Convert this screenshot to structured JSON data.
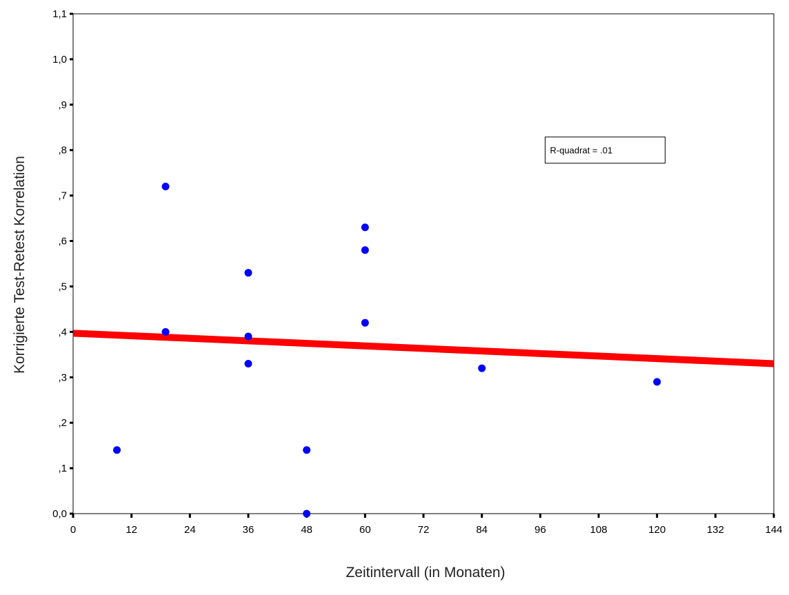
{
  "chart_data": {
    "type": "scatter",
    "title": "",
    "xlabel": "Zeitintervall (in Monaten)",
    "ylabel": "Korrigierte Test-Retest Korrelation",
    "xlim": [
      0,
      144
    ],
    "ylim": [
      0.0,
      1.1
    ],
    "x_ticks": [
      0,
      12,
      24,
      36,
      48,
      60,
      72,
      84,
      96,
      108,
      120,
      132,
      144
    ],
    "x_tick_labels": [
      "0",
      "12",
      "24",
      "36",
      "48",
      "60",
      "72",
      "84",
      "96",
      "108",
      "120",
      "132",
      "144"
    ],
    "y_ticks": [
      0.0,
      0.1,
      0.2,
      0.3,
      0.4,
      0.5,
      0.6,
      0.7,
      0.8,
      0.9,
      1.0,
      1.1
    ],
    "y_tick_labels": [
      "0,0",
      ",1",
      ",2",
      ",3",
      ",4",
      ",5",
      ",6",
      ",7",
      ",8",
      ",9",
      "1,0",
      "1,1"
    ],
    "grid": false,
    "series": [
      {
        "values": [
          [
            9,
            0.14
          ],
          [
            19,
            0.72
          ],
          [
            19,
            0.4
          ],
          [
            36,
            0.53
          ],
          [
            36,
            0.39
          ],
          [
            36,
            0.33
          ],
          [
            48,
            0.14
          ],
          [
            48,
            0.0
          ],
          [
            60,
            0.63
          ],
          [
            60,
            0.58
          ],
          [
            60,
            0.42
          ],
          [
            84,
            0.32
          ],
          [
            120,
            0.29
          ]
        ],
        "color": "#0000ff"
      }
    ],
    "fit_line": {
      "x": [
        0,
        144
      ],
      "y": [
        0.397,
        0.33
      ],
      "color": "#ff0000"
    },
    "annotation": {
      "text": "R-quadrat = .01",
      "x": 97,
      "y": 0.8
    }
  }
}
